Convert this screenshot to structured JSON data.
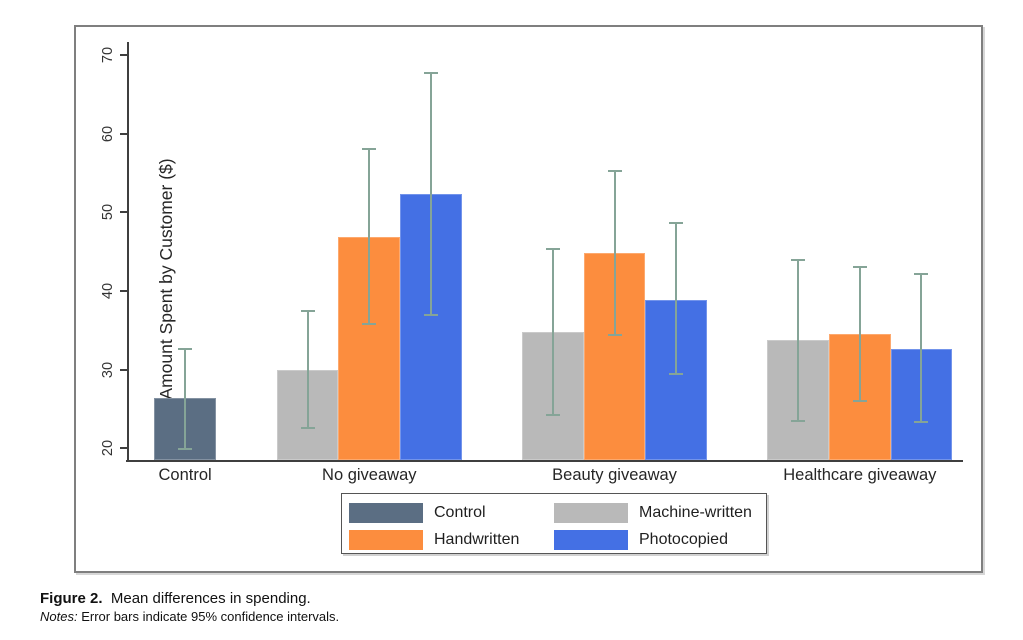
{
  "figure": {
    "caption_label": "Figure 2.",
    "caption_text": "Mean differences in spending.",
    "notes_label": "Notes:",
    "notes_text": "Error bars indicate 95% confidence intervals."
  },
  "chart_data": {
    "type": "bar",
    "title": "",
    "xlabel": "",
    "ylabel": "Amount Spent by Customer ($)",
    "ylim": [
      18.5,
      73.5
    ],
    "yticks": [
      20,
      30,
      40,
      50,
      60,
      70
    ],
    "grid": false,
    "legend_position": "bottom-center",
    "error_bars": "95% confidence intervals",
    "error_bar_color": "#85a497",
    "categories": [
      "Control",
      "No giveaway",
      "Beauty giveaway",
      "Healthcare giveaway"
    ],
    "series": [
      {
        "name": "Control",
        "color": "#5b6e83",
        "values": [
          26.4,
          null,
          null,
          null
        ],
        "ci_low": [
          19.9,
          null,
          null,
          null
        ],
        "ci_high": [
          32.6,
          null,
          null,
          null
        ]
      },
      {
        "name": "Machine-written",
        "color": "#b9b9b9",
        "values": [
          null,
          29.9,
          34.8,
          33.8
        ],
        "ci_low": [
          null,
          22.6,
          24.2,
          23.5
        ],
        "ci_high": [
          null,
          37.5,
          45.4,
          44.0
        ]
      },
      {
        "name": "Handwritten",
        "color": "#fc8d3e",
        "values": [
          null,
          46.8,
          44.8,
          34.5
        ],
        "ci_low": [
          null,
          35.8,
          34.4,
          26.0
        ],
        "ci_high": [
          null,
          58.1,
          55.3,
          43.0
        ]
      },
      {
        "name": "Photocopied",
        "color": "#4470e4",
        "values": [
          null,
          52.3,
          38.9,
          32.6
        ],
        "ci_low": [
          null,
          36.9,
          29.4,
          23.3
        ],
        "ci_high": [
          null,
          67.7,
          48.7,
          42.1
        ]
      }
    ],
    "legend": [
      "Control",
      "Machine-written",
      "Handwritten",
      "Photocopied"
    ],
    "layout_hints": {
      "group_center_frac": [
        0.0695,
        0.2898,
        0.5832,
        0.8766
      ],
      "bar_width_frac": 0.0737
    }
  }
}
